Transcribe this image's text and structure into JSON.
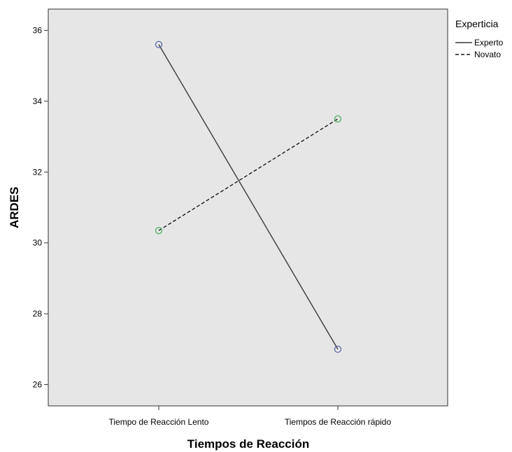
{
  "chart_data": {
    "type": "line",
    "categories": [
      "Tiempo de Reacción Lento",
      "Tiempos de Reacción rápido"
    ],
    "series": [
      {
        "name": "Experto",
        "values": [
          35.6,
          27.0
        ],
        "line_style": "solid",
        "line_color": "#3a3a3a",
        "marker_color": "#5b6aa8"
      },
      {
        "name": "Novato",
        "values": [
          30.35,
          33.5
        ],
        "line_style": "dashed",
        "line_color": "#1a1a1a",
        "marker_color": "#4caf63"
      }
    ],
    "xlabel": "Tiempos de Reacción",
    "ylabel": "ARDES",
    "ylim": [
      25.4,
      36.6
    ],
    "yticks": [
      26,
      28,
      30,
      32,
      34,
      36
    ],
    "grid": false,
    "background_color": "#e6e6e6",
    "legend": {
      "title": "Experticia",
      "position": "right-top"
    }
  }
}
